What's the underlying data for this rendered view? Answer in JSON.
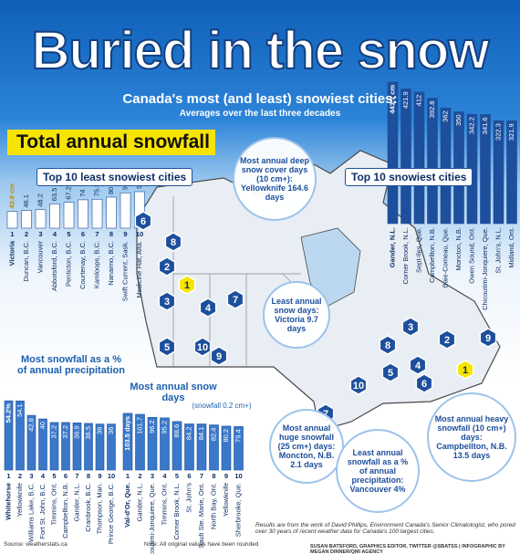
{
  "header": {
    "title": "Buried in the snow",
    "subtitle": "Canada's most (and least) snowiest cities:",
    "subtitle2": "Averages over the last three decades",
    "section": "Total annual snowfall"
  },
  "chart_data": [
    {
      "type": "bar",
      "title": "Top 10 least snowiest cities",
      "categories": [
        "Victoria",
        "Duncan, B.C.",
        "Vancouver",
        "Abbotsford, B.C.",
        "Penticton, B.C.",
        "Courtenay, B.C.",
        "Kamloops, B.C.",
        "Nanaimo, B.C.",
        "Swift Current, Sask.",
        "Medicine Hat, Alta."
      ],
      "ranks": [
        1,
        2,
        3,
        4,
        5,
        6,
        7,
        8,
        9,
        10
      ],
      "series": [
        {
          "color": "#ffffff",
          "values": [
            43.8,
            46.1,
            48.2,
            63.5,
            67.2,
            74,
            75.5,
            80.9,
            92.2,
            95.2
          ],
          "value_labels": [
            "43.8 cm",
            "46.1",
            "48.2",
            "63.5",
            "67.2",
            "74",
            "75.5",
            "80.9",
            "92.2",
            "95.2"
          ]
        }
      ]
    },
    {
      "type": "bar",
      "title": "Top 10 snowiest cities",
      "categories": [
        "Gander, N.L.",
        "Corner Brook, N.L.",
        "Sept-Iles, Que.",
        "Campbellton, N.B.",
        "Baie-Comeau, Que.",
        "Moncton, N.B.",
        "Owen Sound, Ont.",
        "Chicoutimi-Jonquiere, Que.",
        "St. John's, N.L.",
        "Midland, Ont."
      ],
      "series": [
        {
          "color": "#1d4f9c",
          "values": [
            443.1,
            421.9,
            412,
            392.8,
            362,
            350,
            342.2,
            341.6,
            322.3,
            321.9
          ],
          "value_labels": [
            "443.1 cm",
            "421.9",
            "412",
            "392.8",
            "362",
            "350",
            "342.2",
            "341.6",
            "322.3",
            "321.9"
          ]
        }
      ]
    },
    {
      "type": "bar",
      "title": "Most snowfall as a % of annual precipitation",
      "categories": [
        "Whitehorse",
        "Yellowknife",
        "Williams Lake, B.C.",
        "Fort St. John, B.C.",
        "Timmins, Ont.",
        "Campbellton, N.B.",
        "Gander, N.L.",
        "Cranbrook, B.C.",
        "Thompson, Man.",
        "Prince George, B.C."
      ],
      "ranks": [
        1,
        2,
        3,
        4,
        5,
        6,
        7,
        8,
        9,
        10
      ],
      "series": [
        {
          "color": "#3a78c9",
          "values": [
            54.2,
            54.1,
            42.8,
            40,
            37.2,
            37.2,
            36.9,
            36.5,
            36,
            36
          ],
          "value_labels": [
            "54.2%",
            "54.1",
            "42.8",
            "40",
            "37.2",
            "37.2",
            "36.9",
            "36.5",
            "36",
            "36"
          ]
        }
      ]
    },
    {
      "type": "bar",
      "title": "Most annual snow days",
      "subtitle": "(snowfall 0.2 cm+)",
      "categories": [
        "Val-d'Or, Que.",
        "Gander, N.L.",
        "Chicoutimi-Jonquiere, Que.",
        "Timmins, Ont.",
        "Corner Brook, N.L.",
        "St. John's",
        "Sault Ste. Marie, Ont.",
        "North Bay, Ont.",
        "Yellowknife",
        "Sherbrooke, Que."
      ],
      "ranks": [
        1,
        2,
        3,
        4,
        5,
        6,
        7,
        8,
        9,
        10
      ],
      "series": [
        {
          "color": "#3a78c9",
          "values": [
            103.5,
            101.7,
            96.2,
            95.2,
            88.6,
            84.2,
            84.1,
            82.4,
            80.2,
            79.4
          ],
          "value_labels": [
            "103.5 days",
            "101.7",
            "96.2",
            "95.2",
            "88.6",
            "84.2",
            "84.1",
            "82.4",
            "80.2",
            "79.4"
          ]
        }
      ]
    }
  ],
  "map_markers": {
    "west": [
      1,
      2,
      3,
      4,
      5,
      6,
      7,
      8,
      9,
      10
    ],
    "east": [
      1,
      2,
      3,
      4,
      5,
      6,
      7,
      8,
      9,
      10
    ]
  },
  "callouts": [
    "Most annual deep snow cover days (10 cm+): Yellowknife 164.6 days",
    "Least annual snow days: Victoria 9.7 days",
    "Most annual huge snowfall (25 cm+) days: Moncton, N.B. 2.1 days",
    "Least annual snowfall as a % of annual precipitation: Vancouver 4%",
    "Most annual heavy snowfall (10 cm+) days: Campbellton, N.B. 13.5 days"
  ],
  "footer": {
    "source": "Source: weatherstats.ca",
    "note": "Note: All original values have been rounded",
    "results": "Results are from the work of David Phillips, Environment Canada's Senior Climatologist, who pored over 30 years of recent weather data for Canada's 100 largest cities.",
    "credit": "SUSAN BATSFORD, GRAPHICS EDITOR, TWITTER @SBATSS | INFOGRAPHIC BY MEGAN DINNER/QMI AGENCY"
  }
}
